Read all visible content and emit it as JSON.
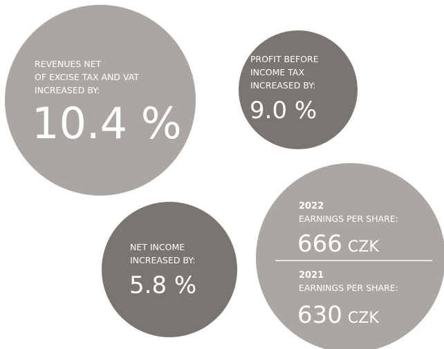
{
  "revenues": {
    "label": [
      "REVENUES NET",
      "OF EXCISE TAX AND VAT",
      "INCREASED BY:"
    ],
    "value": "10.4 %"
  },
  "profit": {
    "label": [
      "PROFIT BEFORE",
      "INCOME TAX",
      "INCREASED BY:"
    ],
    "value": "9.0 %"
  },
  "net_income": {
    "label": [
      "NET INCOME",
      "INCREASED BY:"
    ],
    "value": "5.8 %"
  },
  "eps": [
    {
      "year": "2022",
      "label": "EARNINGS PER SHARE:",
      "value": "666",
      "unit": "CZK"
    },
    {
      "year": "2021",
      "label": "EARNINGS PER SHARE:",
      "value": "630",
      "unit": "CZK"
    }
  ]
}
